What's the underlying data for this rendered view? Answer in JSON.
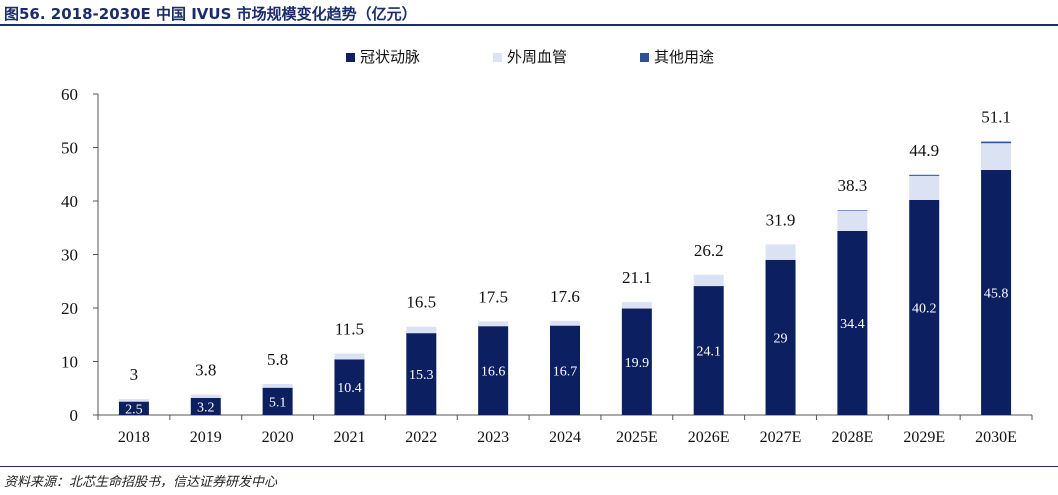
{
  "figure_title": "图56. 2018-2030E 中国 IVUS 市场规模变化趋势（亿元）",
  "source_note": "资料来源：北芯生命招股书，信达证券研发中心",
  "colors": {
    "title": "#1b2c6b",
    "coronary": "#0b1f61",
    "peripheral": "#dbe2f3",
    "other": "#2d4f9c"
  },
  "chart_data": {
    "type": "bar",
    "stacked": true,
    "categories": [
      "2018",
      "2019",
      "2020",
      "2021",
      "2022",
      "2023",
      "2024",
      "2025E",
      "2026E",
      "2027E",
      "2028E",
      "2029E",
      "2030E"
    ],
    "series": [
      {
        "name": "冠状动脉",
        "values": [
          2.5,
          3.2,
          5.1,
          10.4,
          15.3,
          16.6,
          16.7,
          19.9,
          24.1,
          29,
          34.4,
          40.2,
          45.8
        ],
        "labels": [
          "2.5",
          "3.2",
          "5.1",
          "10.4",
          "15.3",
          "16.6",
          "16.7",
          "19.9",
          "24.1",
          "29",
          "34.4",
          "40.2",
          "45.8"
        ]
      },
      {
        "name": "外周血管",
        "values": [
          0.5,
          0.6,
          0.7,
          1.1,
          1.2,
          0.9,
          0.9,
          1.2,
          2.1,
          2.9,
          3.8,
          4.5,
          5.0
        ]
      },
      {
        "name": "其他用途",
        "values": [
          0,
          0,
          0,
          0,
          0,
          0,
          0,
          0,
          0,
          0,
          0.1,
          0.2,
          0.3
        ]
      }
    ],
    "totals": [
      3,
      3.8,
      5.8,
      11.5,
      16.5,
      17.5,
      17.6,
      21.1,
      26.2,
      31.9,
      38.3,
      44.9,
      51.1
    ],
    "total_labels": [
      "3",
      "3.8",
      "5.8",
      "11.5",
      "16.5",
      "17.5",
      "17.6",
      "21.1",
      "26.2",
      "31.9",
      "38.3",
      "44.9",
      "51.1"
    ],
    "ylim": [
      0,
      60
    ],
    "yticks": [
      "0",
      "10",
      "20",
      "30",
      "40",
      "50",
      "60"
    ],
    "legend_position": "top-center",
    "grid": false
  }
}
